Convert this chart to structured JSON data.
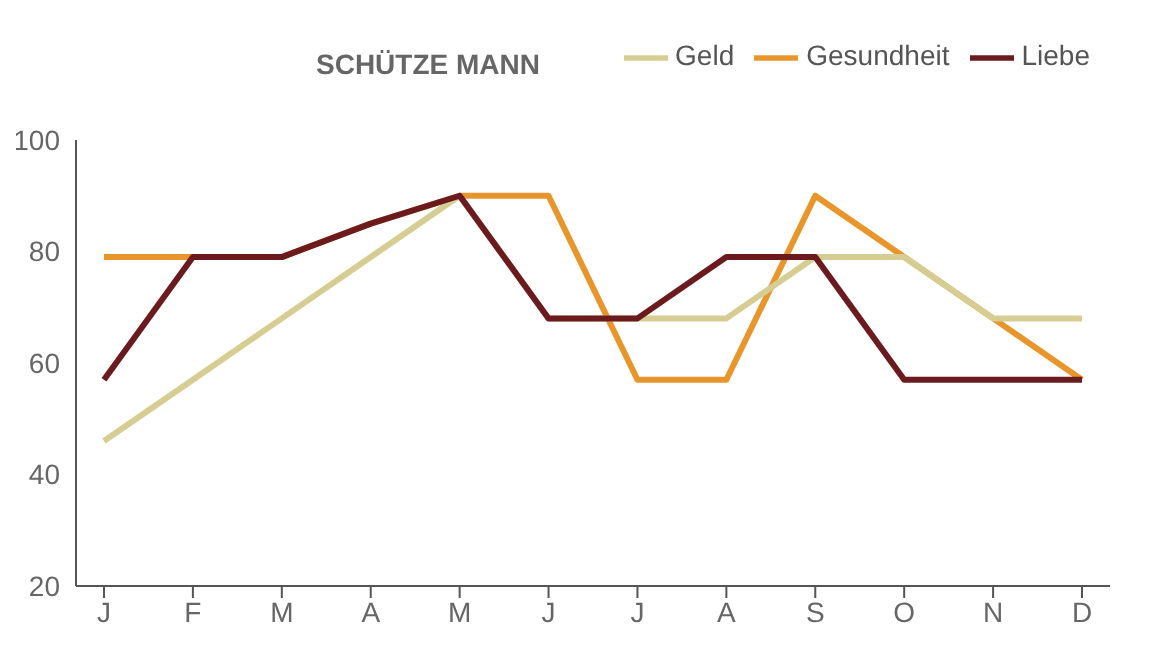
{
  "chart_data": {
    "type": "line",
    "title": "SCHÜTZE MANN",
    "categories": [
      "J",
      "F",
      "M",
      "A",
      "M",
      "J",
      "J",
      "A",
      "S",
      "O",
      "N",
      "D"
    ],
    "series": [
      {
        "name": "Gesundheit",
        "color": "#e8962c",
        "values": [
          79,
          79,
          79,
          85,
          90,
          90,
          57,
          57,
          90,
          79,
          68,
          57
        ]
      },
      {
        "name": "Geld",
        "color": "#d5cd91",
        "values": [
          46,
          57,
          68,
          79,
          90,
          68,
          68,
          68,
          79,
          79,
          68,
          68
        ]
      },
      {
        "name": "Liebe",
        "color": "#6b1a1e",
        "values": [
          57,
          79,
          79,
          85,
          90,
          68,
          68,
          79,
          79,
          57,
          57,
          57
        ]
      }
    ],
    "ylim": [
      20,
      100
    ],
    "yticks": [
      20,
      40,
      60,
      80,
      100
    ],
    "grid": false,
    "legend": "top right",
    "marker": "none",
    "line_style": "solid"
  }
}
